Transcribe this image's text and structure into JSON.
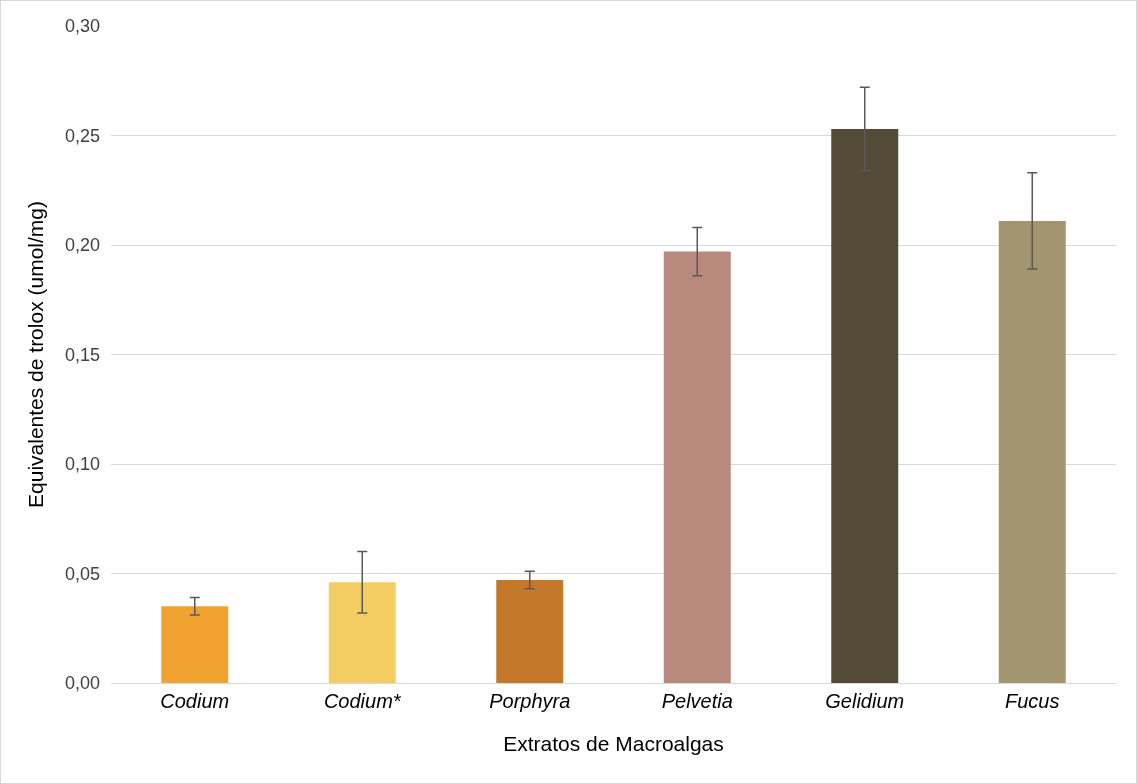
{
  "chart_data": {
    "type": "bar",
    "xlabel": "Extratos de Macroalgas",
    "ylabel": "Equivalentes de trolox (umol/mg)",
    "categories": [
      "Codium",
      "Codium*",
      "Porphyra",
      "Pelvetia",
      "Gelidium",
      "Fucus"
    ],
    "values": [
      0.035,
      0.046,
      0.047,
      0.197,
      0.253,
      0.211
    ],
    "errors": [
      0.004,
      0.014,
      0.004,
      0.011,
      0.019,
      0.022
    ],
    "colors": [
      "#f0a330",
      "#f3cd62",
      "#c4782a",
      "#b88a7e",
      "#544b37",
      "#a29570"
    ],
    "ylim": [
      0,
      0.3
    ],
    "yticks": [
      {
        "value": 0,
        "label": "0,00"
      },
      {
        "value": 0.05,
        "label": "0,05"
      },
      {
        "value": 0.1,
        "label": "0,10"
      },
      {
        "value": 0.15,
        "label": "0,15"
      },
      {
        "value": 0.2,
        "label": "0,20"
      },
      {
        "value": 0.25,
        "label": "0,25"
      },
      {
        "value": 0.3,
        "label": "0,30"
      }
    ],
    "grid": "y"
  }
}
